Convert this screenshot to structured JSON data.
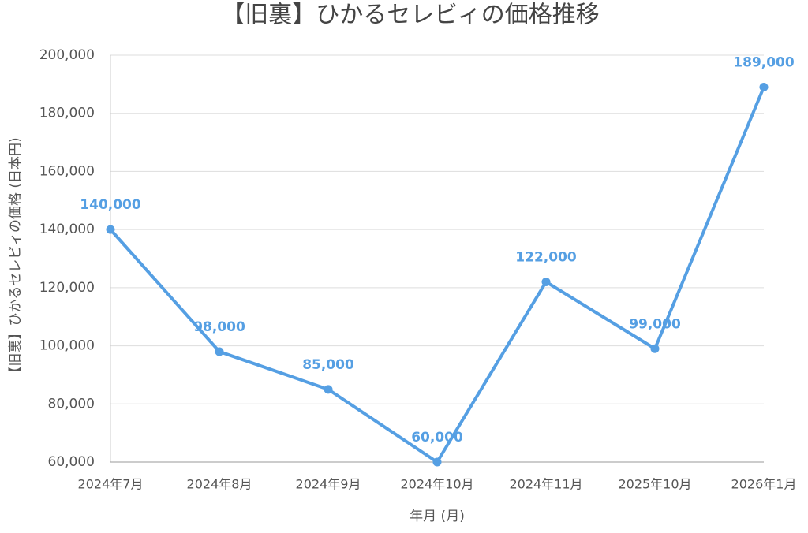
{
  "chart_data": {
    "type": "line",
    "title": "【旧裏】ひかるセレビィの価格推移",
    "x_label": "年月 (月)",
    "y_label": "【旧裏】ひかるセレビィの価格 (日本円)",
    "categories": [
      "2024年7月",
      "2024年8月",
      "2024年9月",
      "2024年10月",
      "2024年11月",
      "2025年10月",
      "2026年1月"
    ],
    "series": [
      {
        "name": "価格",
        "color": "#559fe3",
        "values": [
          140000,
          98000,
          85000,
          60000,
          122000,
          99000,
          189000
        ],
        "value_labels": [
          "140,000",
          "98,000",
          "85,000",
          "60,000",
          "122,000",
          "99,000",
          "189,000"
        ]
      }
    ],
    "ylim": [
      60000,
      200000
    ],
    "yticks": [
      {
        "value": 60000,
        "label": "60,000"
      },
      {
        "value": 80000,
        "label": "80,000"
      },
      {
        "value": 100000,
        "label": "100,000"
      },
      {
        "value": 120000,
        "label": "120,000"
      },
      {
        "value": 140000,
        "label": "140,000"
      },
      {
        "value": 160000,
        "label": "160,000"
      },
      {
        "value": 180000,
        "label": "180,000"
      },
      {
        "value": 200000,
        "label": "200,000"
      }
    ],
    "grid": true
  }
}
